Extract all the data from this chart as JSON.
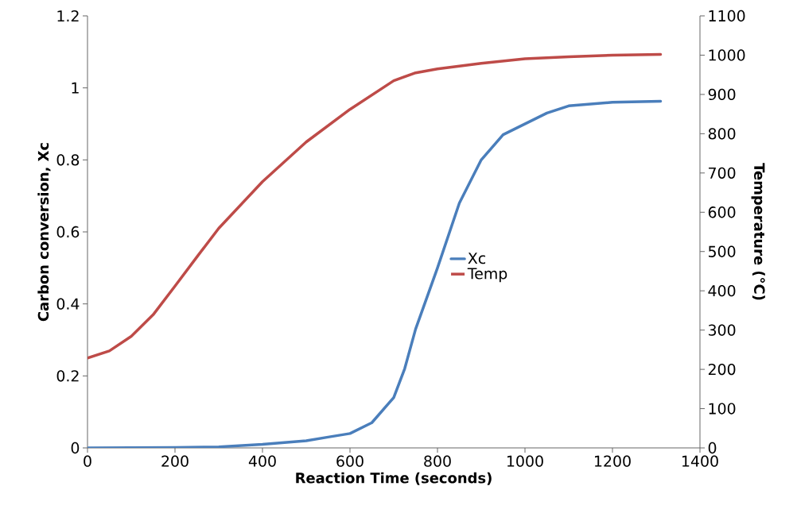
{
  "chart_data": {
    "type": "line",
    "xlabel": "Reaction Time (seconds)",
    "ylabel": "Carbon conversion, Xc",
    "y2label": "Temperature (°C)",
    "xlim": [
      0,
      1400
    ],
    "xticks": [
      0,
      200,
      400,
      600,
      800,
      1000,
      1200,
      1400
    ],
    "ylim": [
      0,
      1.2
    ],
    "yticks": [
      0,
      0.2,
      0.4,
      0.6,
      0.8,
      1,
      1.2
    ],
    "y2lim": [
      0,
      1100
    ],
    "y2ticks": [
      0,
      100,
      200,
      300,
      400,
      500,
      600,
      700,
      800,
      900,
      1000,
      1100
    ],
    "legend": "right",
    "grid": false,
    "series": [
      {
        "name": "Xc",
        "color": "#4a7ebb",
        "x": [
          0,
          200,
          300,
          400,
          500,
          550,
          600,
          650,
          700,
          725,
          750,
          800,
          850,
          900,
          950,
          1000,
          1050,
          1100,
          1200,
          1310
        ],
        "values": [
          0,
          0.001,
          0.003,
          0.01,
          0.02,
          0.03,
          0.04,
          0.07,
          0.14,
          0.22,
          0.33,
          0.5,
          0.68,
          0.8,
          0.87,
          0.9,
          0.93,
          0.95,
          0.96,
          0.963
        ]
      },
      {
        "name": "Temp",
        "color": "#be4b48",
        "axis": "y2",
        "x": [
          0,
          50,
          100,
          150,
          200,
          250,
          300,
          400,
          500,
          600,
          700,
          750,
          800,
          900,
          1000,
          1100,
          1200,
          1310
        ],
        "values": [
          229,
          247,
          284,
          339,
          412,
          486,
          559,
          678,
          779,
          862,
          935,
          955,
          965,
          979,
          991,
          996,
          1000,
          1002
        ]
      }
    ]
  }
}
